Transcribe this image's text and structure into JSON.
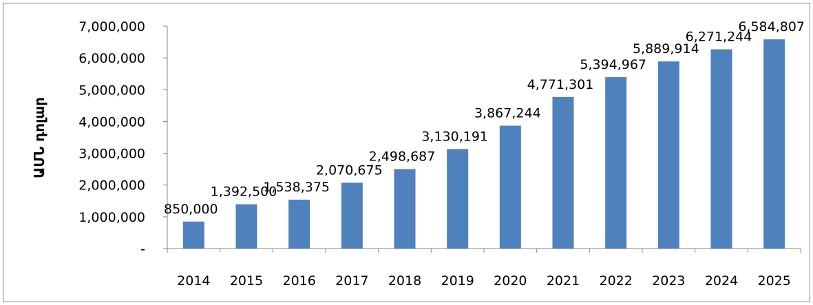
{
  "chart_data": {
    "type": "bar",
    "title": "",
    "xlabel": "",
    "ylabel": "ԱՄՆ դոլար",
    "categories": [
      "2014",
      "2015",
      "2016",
      "2017",
      "2018",
      "2019",
      "2020",
      "2021",
      "2022",
      "2023",
      "2024",
      "2025"
    ],
    "values": [
      850000,
      1392500,
      1538375,
      2070675,
      2498687,
      3130191,
      3867244,
      4771301,
      5394967,
      5889914,
      6271244,
      6584807
    ],
    "value_labels": [
      "850,000",
      "1,392,500",
      "1,538,375",
      "2,070,675",
      "2,498,687",
      "3,130,191",
      "3,867,244",
      "4,771,301",
      "5,394,967",
      "5,889,914",
      "6,271,244",
      "6,584,807"
    ],
    "ylim": [
      0,
      7000000
    ],
    "yticks": [
      0,
      1000000,
      2000000,
      3000000,
      4000000,
      5000000,
      6000000,
      7000000
    ],
    "ytick_labels": [
      "-",
      "1,000,000",
      "2,000,000",
      "3,000,000",
      "4,000,000",
      "5,000,000",
      "6,000,000",
      "7,000,000"
    ],
    "grid": false,
    "legend": "none",
    "bar_color": "#4f81bd"
  }
}
